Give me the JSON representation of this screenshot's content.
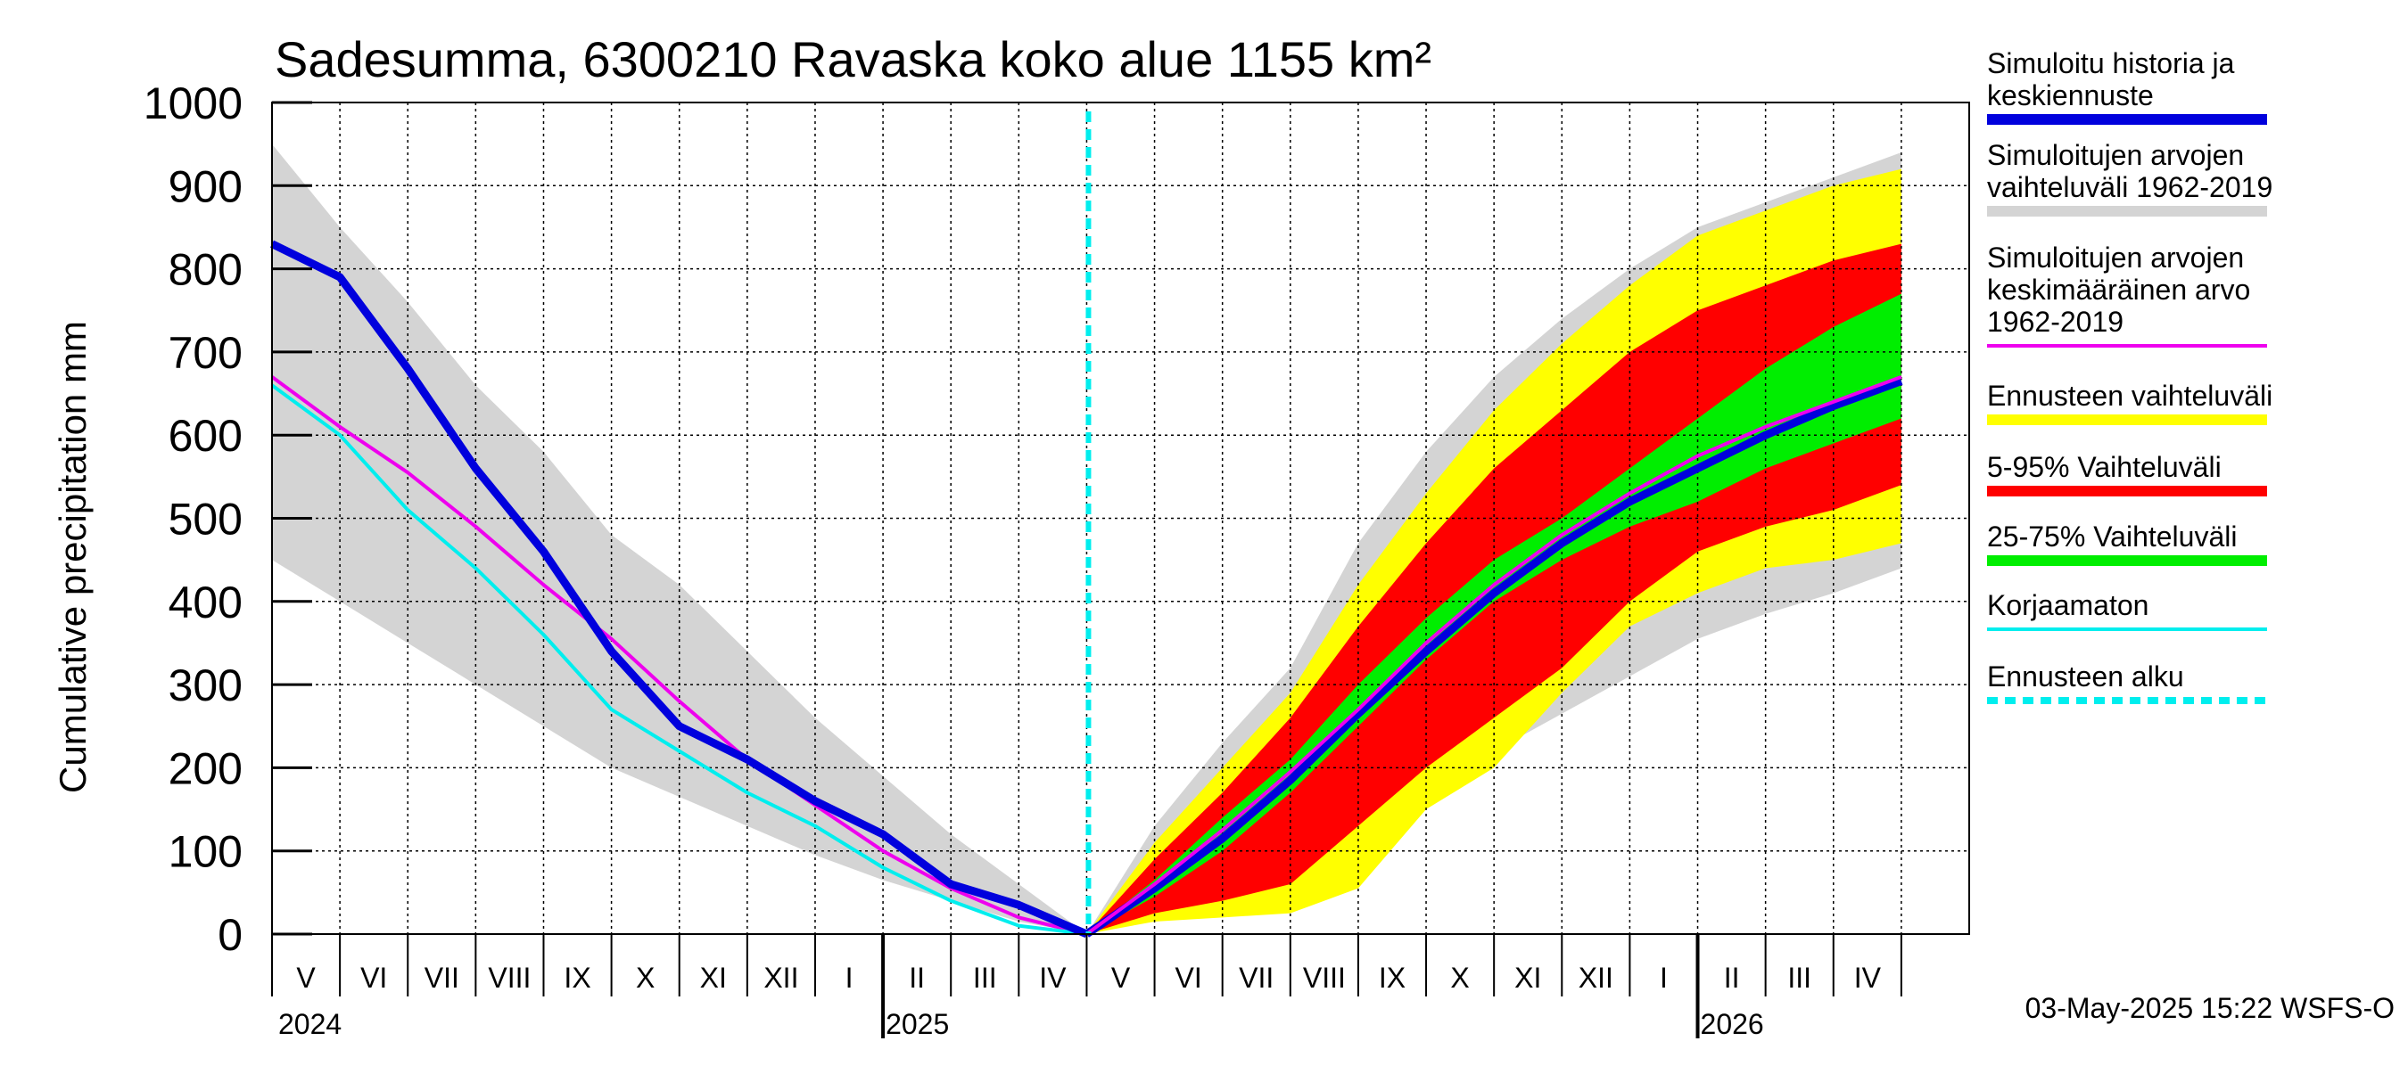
{
  "chart_data": {
    "type": "area",
    "title": "Sadesumma, 6300210 Ravaska koko alue 1155 km²",
    "ylabel": "Cumulative precipitation   mm",
    "ylim": [
      0,
      1000
    ],
    "y_ticks": [
      0,
      100,
      200,
      300,
      400,
      500,
      600,
      700,
      800,
      900,
      1000
    ],
    "x_start": "2024-04-01",
    "x_end": "2026-05-01",
    "forecast_start": "2025-05-01",
    "month_labels": [
      "V",
      "VI",
      "VII",
      "VIII",
      "IX",
      "X",
      "XI",
      "XII",
      "I",
      "II",
      "III",
      "IV",
      "V",
      "VI",
      "VII",
      "VIII",
      "IX",
      "X",
      "XI",
      "XII",
      "I",
      "II",
      "III",
      "IV"
    ],
    "year_labels": [
      "2024",
      "2025",
      "2026"
    ],
    "timestamp": "03-May-2025 15:22 WSFS-O",
    "legend": [
      {
        "label": [
          "Simuloitu historia ja",
          "keskiennuste"
        ],
        "color": "#0000dd",
        "style": "thick"
      },
      {
        "label": [
          "Simuloitujen arvojen",
          "vaihteluväli 1962-2019"
        ],
        "color": "#d4d4d4",
        "style": "thick"
      },
      {
        "label": [
          "Simuloitujen arvojen",
          "keskimääräinen arvo",
          "   1962-2019"
        ],
        "color": "#ee00ee",
        "style": "thin"
      },
      {
        "label": [
          "Ennusteen vaihteluväli"
        ],
        "color": "#ffff00",
        "style": "thick"
      },
      {
        "label": [
          "5-95% Vaihteluväli"
        ],
        "color": "#ff0000",
        "style": "thick"
      },
      {
        "label": [
          "25-75% Vaihteluväli"
        ],
        "color": "#00ee00",
        "style": "thick"
      },
      {
        "label": [
          "Korjaamaton"
        ],
        "color": "#00eeee",
        "style": "thin"
      },
      {
        "label": [
          "Ennusteen alku"
        ],
        "color": "#00eeee",
        "style": "dashed"
      }
    ],
    "history": {
      "months": [
        0,
        1,
        2,
        3,
        4,
        5,
        6,
        7,
        8,
        9,
        10,
        11,
        12
      ],
      "sim_range_low": [
        450,
        400,
        350,
        300,
        250,
        200,
        165,
        130,
        95,
        65,
        40,
        15,
        0
      ],
      "sim_range_high": [
        950,
        850,
        760,
        660,
        580,
        480,
        420,
        340,
        260,
        190,
        120,
        60,
        0
      ],
      "sim_mean": [
        670,
        610,
        555,
        490,
        420,
        355,
        280,
        210,
        155,
        100,
        55,
        20,
        0
      ],
      "uncorrected": [
        660,
        600,
        510,
        440,
        360,
        270,
        220,
        170,
        130,
        80,
        40,
        10,
        0
      ],
      "simulated": [
        830,
        790,
        680,
        560,
        460,
        340,
        250,
        210,
        160,
        120,
        60,
        35,
        0
      ]
    },
    "forecast": {
      "months": [
        12,
        13,
        14,
        15,
        16,
        17,
        18,
        19,
        20,
        21,
        22,
        23,
        24
      ],
      "sim_range_low": [
        0,
        20,
        55,
        90,
        130,
        175,
        220,
        265,
        310,
        355,
        385,
        410,
        440
      ],
      "sim_range_high": [
        0,
        130,
        230,
        320,
        470,
        580,
        670,
        740,
        800,
        850,
        880,
        910,
        940
      ],
      "fc_min": [
        0,
        15,
        20,
        25,
        55,
        150,
        200,
        290,
        370,
        410,
        440,
        450,
        470
      ],
      "fc_max": [
        0,
        110,
        200,
        290,
        420,
        530,
        630,
        710,
        780,
        840,
        870,
        900,
        920
      ],
      "p5": [
        0,
        25,
        40,
        60,
        130,
        200,
        260,
        320,
        400,
        460,
        490,
        510,
        540
      ],
      "p95": [
        0,
        90,
        170,
        260,
        370,
        470,
        560,
        630,
        700,
        750,
        780,
        810,
        830
      ],
      "p25": [
        0,
        45,
        100,
        170,
        250,
        330,
        400,
        450,
        490,
        520,
        560,
        590,
        620
      ],
      "p75": [
        0,
        65,
        140,
        210,
        300,
        380,
        450,
        500,
        560,
        620,
        680,
        730,
        770
      ],
      "median": [
        0,
        55,
        115,
        185,
        265,
        340,
        410,
        470,
        520,
        560,
        600,
        635,
        665
      ],
      "sim_mean": [
        0,
        60,
        125,
        195,
        270,
        350,
        420,
        480,
        530,
        575,
        610,
        640,
        670
      ]
    }
  }
}
